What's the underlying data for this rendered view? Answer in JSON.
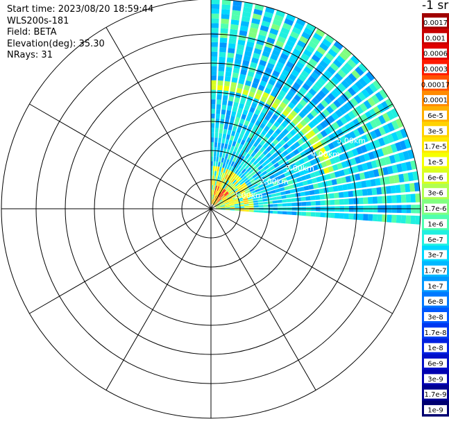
{
  "info": {
    "start_time": "Start time: 2023/08/20 18:59:44",
    "instrument": "WLS200s-181",
    "field": "Field: BETA",
    "elevation": "Elevation(deg): 35.30",
    "nrays": "NRays: 31"
  },
  "chart_data": {
    "type": "heatmap",
    "projection": "polar (PPI)",
    "field": "BETA",
    "range_rings_labels": [
      "1.00km",
      "2.00km",
      "3.00km",
      "4.00km",
      "5.00km"
    ],
    "azimuth_coverage_deg": [
      0,
      95
    ],
    "colorbar": {
      "unit_label": "-1 sr",
      "tick_labels": [
        "0.0017",
        "0.001",
        "0.0006",
        "0.0003",
        "0.00017",
        "0.0001",
        "6e-5",
        "3e-5",
        "1.7e-5",
        "1e-5",
        "6e-6",
        "3e-6",
        "1.7e-6",
        "1e-6",
        "6e-7",
        "3e-7",
        "1.7e-7",
        "1e-7",
        "6e-8",
        "3e-8",
        "1.7e-8",
        "1e-8",
        "6e-9",
        "3e-9",
        "1.7e-9",
        "1e-9"
      ],
      "colors": [
        "#a00000",
        "#c80000",
        "#e00000",
        "#ff1a00",
        "#ff5200",
        "#ff8a00",
        "#ffb000",
        "#ffd200",
        "#ffe800",
        "#f5ff00",
        "#d8ff20",
        "#b0ff50",
        "#80ff80",
        "#50ffb0",
        "#20f0e0",
        "#00d8ff",
        "#00b8ff",
        "#0098ff",
        "#0078ff",
        "#0058ff",
        "#0038f0",
        "#0020e0",
        "#0010c8",
        "#0000b0",
        "#000090",
        "#000070"
      ]
    }
  }
}
